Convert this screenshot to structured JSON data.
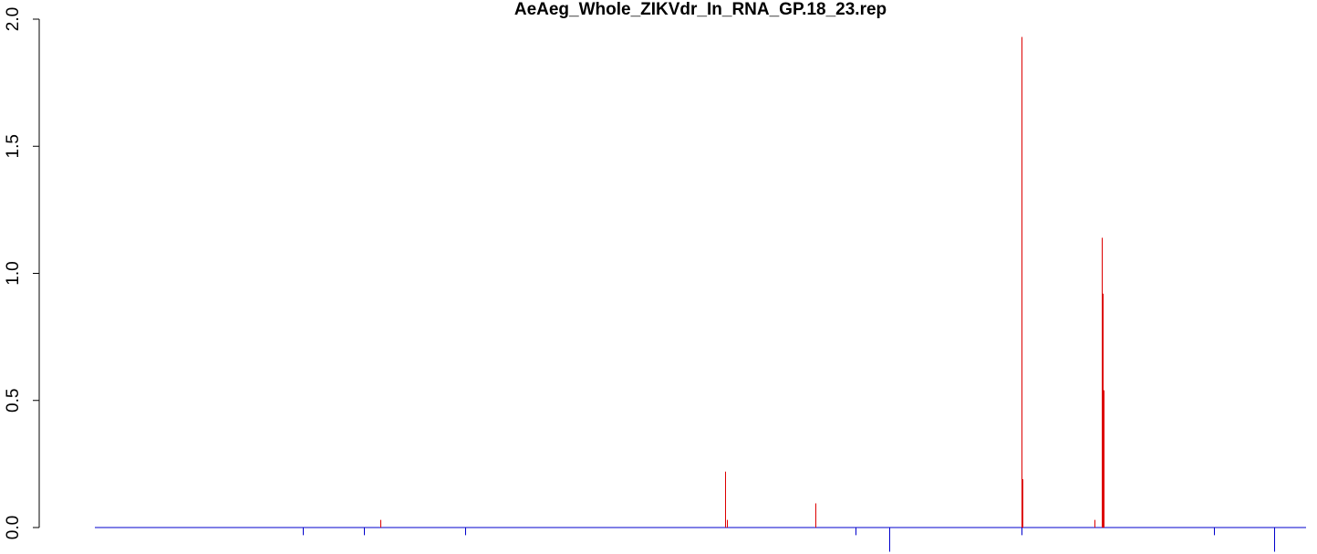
{
  "chart_data": {
    "type": "bar",
    "title": "AeAeg_Whole_ZIKVdr_In_RNA_GP.18_23.rep",
    "xlabel": "",
    "ylabel": "",
    "ylim": [
      -0.1,
      2.0
    ],
    "xlim": [
      0,
      1000
    ],
    "y_ticks": [
      "0.0",
      "0.5",
      "1.0",
      "1.5",
      "2.0"
    ],
    "grid": false,
    "legend": "none",
    "colors": {
      "positive": "#dd0000",
      "negative": "#0000cc",
      "baseline": "#0000cc"
    },
    "series": [
      {
        "strand": "positive",
        "x": [
          236,
          520,
          522,
          595,
          765,
          765.5,
          825,
          831,
          832,
          832.5
        ],
        "values": [
          0.03,
          0.22,
          0.03,
          0.095,
          1.93,
          0.19,
          0.03,
          1.14,
          0.92,
          0.54
        ]
      },
      {
        "strand": "negative",
        "x": [
          172,
          222,
          306,
          628,
          656,
          765,
          924,
          974
        ],
        "values": [
          -0.03,
          -0.03,
          -0.03,
          -0.03,
          -0.095,
          -0.03,
          -0.03,
          -0.095
        ]
      }
    ]
  }
}
